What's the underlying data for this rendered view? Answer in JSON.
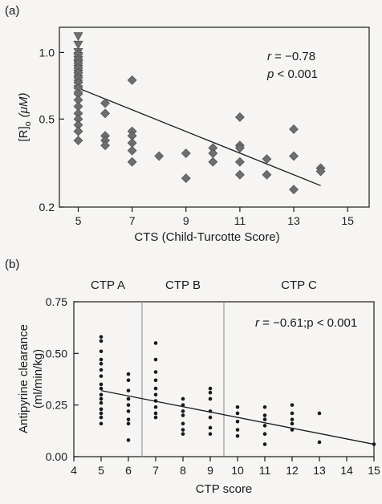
{
  "colors": {
    "background": "#f6f5f3",
    "ink": "#1a1a1a",
    "panel_a_marker": "#6e6e6e",
    "panel_b_divider": "#9a9a9a"
  },
  "chart_data": [
    {
      "panel": "(a)",
      "type": "scatter",
      "xlabel": "CTS (Child-Turcotte Score)",
      "ylabel": "[R]ₒ (μM)",
      "ylabel_parts": {
        "main": "[R]",
        "sub": "o",
        "unit": "(μM)"
      },
      "x_scale": "linear",
      "y_scale": "log",
      "xlim": [
        4.3,
        15.8
      ],
      "ylim": [
        0.2,
        1.3
      ],
      "x_ticks": [
        5,
        7,
        9,
        11,
        13,
        15
      ],
      "x_tick_labels": [
        "5",
        "7",
        "9",
        "11",
        "13",
        "15"
      ],
      "y_ticks": [
        0.2,
        0.5,
        1.0
      ],
      "y_tick_labels": [
        "0.2",
        "0.5",
        "1.0"
      ],
      "grid": false,
      "annotations": {
        "r_label": "r",
        "r_value": " = −0.78",
        "p_label": "p",
        "p_value": " < 0.001"
      },
      "fit_line": {
        "x": [
          5,
          14
        ],
        "y": [
          0.69,
          0.25
        ]
      },
      "series": [
        {
          "marker": "triangle-down",
          "points": [
            [
              5,
              1.18
            ],
            [
              5,
              1.08
            ],
            [
              5,
              1.0
            ],
            [
              5,
              0.96
            ],
            [
              5,
              0.92
            ],
            [
              5,
              0.88
            ],
            [
              5,
              0.84
            ],
            [
              5,
              0.8
            ],
            [
              5,
              0.76
            ],
            [
              5,
              0.72
            ],
            [
              5,
              0.68
            ],
            [
              5,
              0.64
            ]
          ]
        },
        {
          "marker": "diamond",
          "points": [
            [
              5,
              0.98
            ],
            [
              5,
              0.93
            ],
            [
              5,
              0.89
            ],
            [
              5,
              0.85
            ],
            [
              5,
              0.81
            ],
            [
              5,
              0.77
            ],
            [
              5,
              0.73
            ],
            [
              5,
              0.69
            ],
            [
              5,
              0.65
            ],
            [
              5,
              0.61
            ],
            [
              5,
              0.57
            ],
            [
              5,
              0.53
            ],
            [
              5,
              0.5
            ],
            [
              5,
              0.47
            ],
            [
              5,
              0.44
            ],
            [
              5,
              0.4
            ],
            [
              6,
              0.59
            ],
            [
              6,
              0.53
            ],
            [
              6,
              0.42
            ],
            [
              6,
              0.4
            ],
            [
              6,
              0.38
            ],
            [
              7,
              0.75
            ],
            [
              7,
              0.44
            ],
            [
              7,
              0.42
            ],
            [
              7,
              0.39
            ],
            [
              7,
              0.36
            ],
            [
              7,
              0.32
            ],
            [
              8,
              0.34
            ],
            [
              9,
              0.35
            ],
            [
              9,
              0.27
            ],
            [
              10,
              0.37
            ],
            [
              10,
              0.35
            ],
            [
              10,
              0.32
            ],
            [
              11,
              0.51
            ],
            [
              11,
              0.38
            ],
            [
              11,
              0.37
            ],
            [
              11,
              0.32
            ],
            [
              11,
              0.28
            ],
            [
              12,
              0.33
            ],
            [
              12,
              0.28
            ],
            [
              13,
              0.45
            ],
            [
              13,
              0.34
            ],
            [
              13,
              0.24
            ],
            [
              14,
              0.3
            ],
            [
              14,
              0.29
            ]
          ]
        }
      ]
    },
    {
      "panel": "(b)",
      "type": "scatter",
      "xlabel": "CTP score",
      "ylabel": "Antipyrine clearance",
      "ylabel_unit": "(ml/min/kg)",
      "xlim": [
        4,
        15
      ],
      "ylim": [
        0,
        0.75
      ],
      "x_ticks": [
        4,
        5,
        6,
        7,
        8,
        9,
        10,
        11,
        12,
        13,
        14,
        15
      ],
      "x_tick_labels": [
        "4",
        "5",
        "6",
        "7",
        "8",
        "9",
        "10",
        "11",
        "12",
        "13",
        "14",
        "15"
      ],
      "y_ticks": [
        0,
        0.25,
        0.5,
        0.75
      ],
      "y_tick_labels": [
        "0.00",
        "0.25",
        "0.50",
        "0.75"
      ],
      "grid": false,
      "groups": [
        {
          "label": "CTP A",
          "x_from": 4,
          "x_to": 6.5
        },
        {
          "label": "CTP B",
          "x_from": 6.5,
          "x_to": 9.5
        },
        {
          "label": "CTP C",
          "x_from": 9.5,
          "x_to": 15
        }
      ],
      "dividers_x": [
        6.5,
        9.5
      ],
      "annotations": {
        "r_label": "r",
        "r_value": " = −0.61;p < 0.001"
      },
      "fit_line": {
        "x": [
          5,
          15
        ],
        "y": [
          0.32,
          0.06
        ]
      },
      "series": [
        {
          "marker": "dot",
          "points": [
            [
              5,
              0.58
            ],
            [
              5,
              0.56
            ],
            [
              5,
              0.51
            ],
            [
              5,
              0.47
            ],
            [
              5,
              0.45
            ],
            [
              5,
              0.42
            ],
            [
              5,
              0.39
            ],
            [
              5,
              0.35
            ],
            [
              5,
              0.33
            ],
            [
              5,
              0.3
            ],
            [
              5,
              0.28
            ],
            [
              5,
              0.26
            ],
            [
              5,
              0.23
            ],
            [
              5,
              0.21
            ],
            [
              5,
              0.19
            ],
            [
              5,
              0.16
            ],
            [
              6,
              0.4
            ],
            [
              6,
              0.37
            ],
            [
              6,
              0.32
            ],
            [
              6,
              0.28
            ],
            [
              6,
              0.25
            ],
            [
              6,
              0.22
            ],
            [
              6,
              0.18
            ],
            [
              6,
              0.16
            ],
            [
              6,
              0.08
            ],
            [
              7,
              0.55
            ],
            [
              7,
              0.47
            ],
            [
              7,
              0.41
            ],
            [
              7,
              0.37
            ],
            [
              7,
              0.33
            ],
            [
              7,
              0.3
            ],
            [
              7,
              0.27
            ],
            [
              7,
              0.24
            ],
            [
              7,
              0.21
            ],
            [
              7,
              0.19
            ],
            [
              8,
              0.28
            ],
            [
              8,
              0.25
            ],
            [
              8,
              0.22
            ],
            [
              8,
              0.2
            ],
            [
              8,
              0.16
            ],
            [
              8,
              0.13
            ],
            [
              8,
              0.11
            ],
            [
              9,
              0.33
            ],
            [
              9,
              0.31
            ],
            [
              9,
              0.28
            ],
            [
              9,
              0.22
            ],
            [
              9,
              0.19
            ],
            [
              9,
              0.14
            ],
            [
              9,
              0.11
            ],
            [
              10,
              0.24
            ],
            [
              10,
              0.21
            ],
            [
              10,
              0.17
            ],
            [
              10,
              0.13
            ],
            [
              10,
              0.1
            ],
            [
              11,
              0.24
            ],
            [
              11,
              0.2
            ],
            [
              11,
              0.18
            ],
            [
              11,
              0.15
            ],
            [
              11,
              0.11
            ],
            [
              11,
              0.06
            ],
            [
              12,
              0.25
            ],
            [
              12,
              0.21
            ],
            [
              12,
              0.18
            ],
            [
              12,
              0.16
            ],
            [
              12,
              0.13
            ],
            [
              13,
              0.21
            ],
            [
              13,
              0.07
            ],
            [
              15,
              0.06
            ]
          ]
        }
      ]
    }
  ]
}
